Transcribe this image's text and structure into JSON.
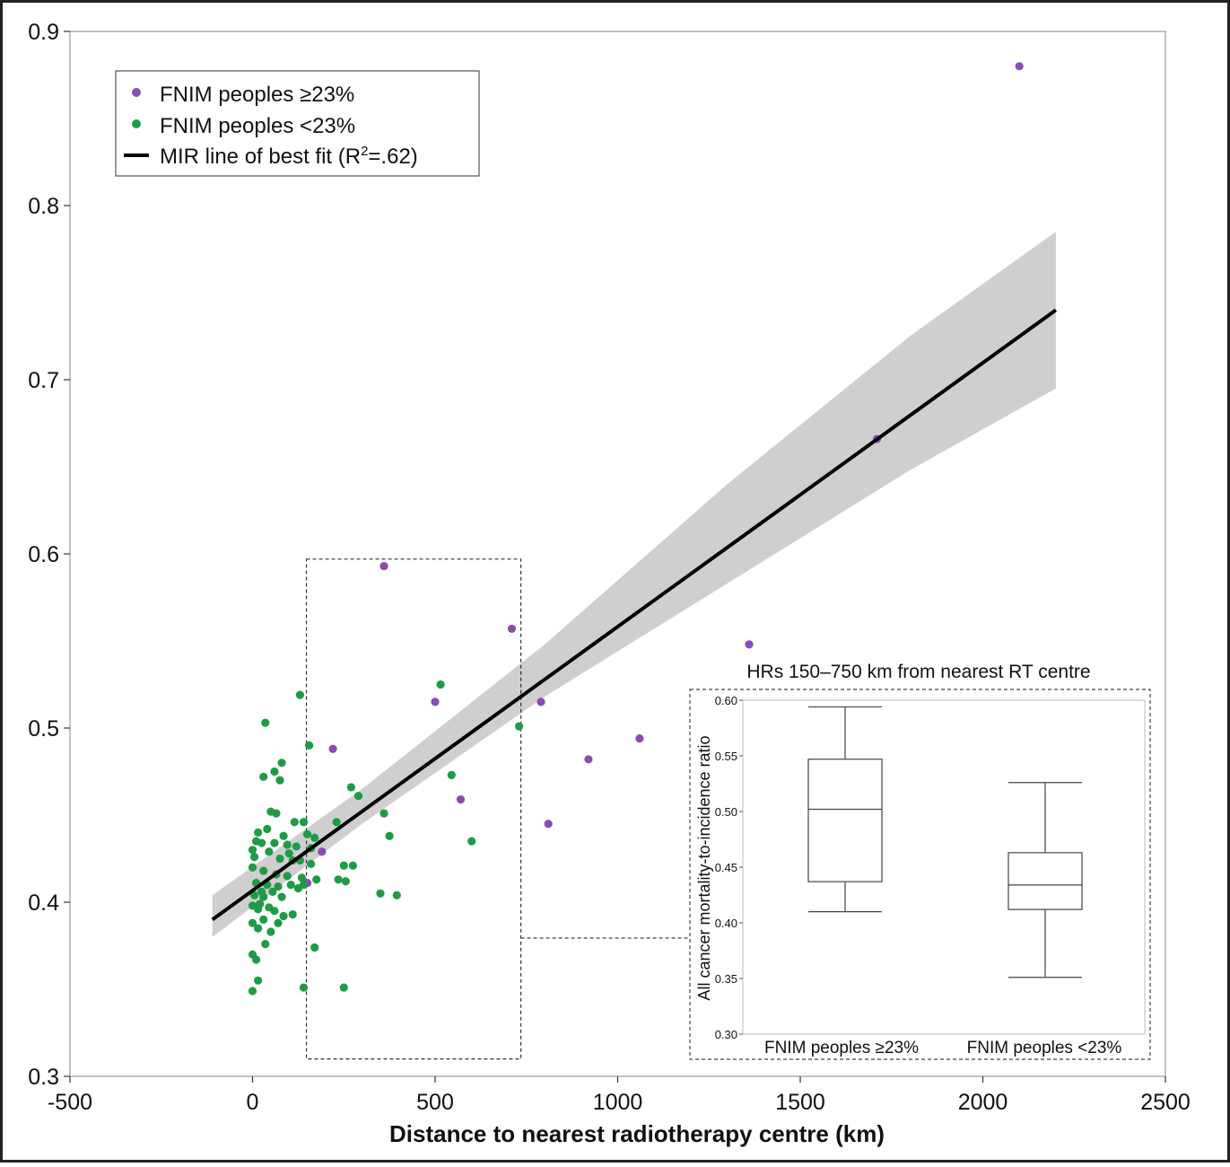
{
  "colors": {
    "purple": "#8a4bb5",
    "green": "#1f9b45",
    "band": "#cfcfcf",
    "line": "#000000",
    "axis": "#333333"
  },
  "chart_data": [
    {
      "type": "scatter",
      "title": "",
      "xlabel": "Distance to nearest radiotherapy centre (km)",
      "ylabel": "",
      "xlim": [
        -500,
        2500
      ],
      "ylim": [
        0.3,
        0.9
      ],
      "xticks": [
        "-500",
        "0",
        "500",
        "1000",
        "1500",
        "2000",
        "2500"
      ],
      "yticks": [
        "0.3",
        "0.4",
        "0.5",
        "0.6",
        "0.7",
        "0.8",
        "0.9"
      ],
      "grid": false,
      "legend_position": "top-left",
      "legend": [
        {
          "label": "FNIM peoples ≥23%",
          "kind": "point",
          "color": "#8a4bb5"
        },
        {
          "label": "FNIM peoples <23%",
          "kind": "point",
          "color": "#1f9b45"
        },
        {
          "label": "MIR line of best fit (R",
          "sup": "2",
          "tail": "=.62)",
          "kind": "line",
          "color": "#000000"
        }
      ],
      "fit_line": {
        "x": [
          -110,
          2200
        ],
        "y": [
          0.39,
          0.74
        ]
      },
      "confidence_band": {
        "x": [
          -110,
          300,
          800,
          1300,
          1800,
          2200
        ],
        "lower": [
          0.38,
          0.445,
          0.518,
          0.583,
          0.648,
          0.695
        ],
        "upper": [
          0.404,
          0.465,
          0.548,
          0.64,
          0.725,
          0.785
        ]
      },
      "highlight_range_km": [
        150,
        730
      ],
      "highlight_y_range": [
        0.31,
        0.597
      ],
      "series": [
        {
          "name": "FNIM peoples ≥23%",
          "color": "#8a4bb5",
          "points": [
            [
              2100,
              0.88
            ],
            [
              1710,
              0.666
            ],
            [
              1360,
              0.548
            ],
            [
              360,
              0.593
            ],
            [
              710,
              0.557
            ],
            [
              790,
              0.515
            ],
            [
              500,
              0.515
            ],
            [
              1060,
              0.494
            ],
            [
              920,
              0.482
            ],
            [
              220,
              0.488
            ],
            [
              570,
              0.459
            ],
            [
              810,
              0.445
            ],
            [
              190,
              0.429
            ],
            [
              150,
              0.411
            ]
          ]
        },
        {
          "name": "FNIM peoples <23%",
          "color": "#1f9b45",
          "points": [
            [
              130,
              0.519
            ],
            [
              515,
              0.525
            ],
            [
              35,
              0.503
            ],
            [
              730,
              0.501
            ],
            [
              155,
              0.49
            ],
            [
              80,
              0.48
            ],
            [
              60,
              0.475
            ],
            [
              30,
              0.472
            ],
            [
              75,
              0.47
            ],
            [
              545,
              0.473
            ],
            [
              270,
              0.466
            ],
            [
              290,
              0.461
            ],
            [
              50,
              0.452
            ],
            [
              65,
              0.451
            ],
            [
              360,
              0.451
            ],
            [
              115,
              0.446
            ],
            [
              140,
              0.446
            ],
            [
              230,
              0.446
            ],
            [
              40,
              0.442
            ],
            [
              15,
              0.44
            ],
            [
              85,
              0.438
            ],
            [
              150,
              0.439
            ],
            [
              170,
              0.437
            ],
            [
              375,
              0.438
            ],
            [
              10,
              0.435
            ],
            [
              25,
              0.434
            ],
            [
              60,
              0.434
            ],
            [
              95,
              0.433
            ],
            [
              120,
              0.432
            ],
            [
              160,
              0.431
            ],
            [
              0,
              0.43
            ],
            [
              45,
              0.429
            ],
            [
              100,
              0.428
            ],
            [
              600,
              0.435
            ],
            [
              5,
              0.426
            ],
            [
              75,
              0.425
            ],
            [
              110,
              0.424
            ],
            [
              130,
              0.424
            ],
            [
              160,
              0.422
            ],
            [
              250,
              0.421
            ],
            [
              275,
              0.421
            ],
            [
              0,
              0.42
            ],
            [
              30,
              0.418
            ],
            [
              65,
              0.416
            ],
            [
              95,
              0.415
            ],
            [
              135,
              0.414
            ],
            [
              175,
              0.413
            ],
            [
              235,
              0.413
            ],
            [
              255,
              0.412
            ],
            [
              10,
              0.411
            ],
            [
              40,
              0.41
            ],
            [
              70,
              0.409
            ],
            [
              105,
              0.41
            ],
            [
              125,
              0.408
            ],
            [
              140,
              0.41
            ],
            [
              25,
              0.406
            ],
            [
              55,
              0.406
            ],
            [
              5,
              0.404
            ],
            [
              30,
              0.403
            ],
            [
              80,
              0.403
            ],
            [
              350,
              0.405
            ],
            [
              395,
              0.404
            ],
            [
              20,
              0.399
            ],
            [
              45,
              0.397
            ],
            [
              0,
              0.398
            ],
            [
              15,
              0.396
            ],
            [
              60,
              0.395
            ],
            [
              85,
              0.392
            ],
            [
              110,
              0.393
            ],
            [
              30,
              0.39
            ],
            [
              70,
              0.388
            ],
            [
              0,
              0.388
            ],
            [
              15,
              0.385
            ],
            [
              50,
              0.383
            ],
            [
              35,
              0.376
            ],
            [
              170,
              0.374
            ],
            [
              0,
              0.37
            ],
            [
              10,
              0.367
            ],
            [
              15,
              0.355
            ],
            [
              140,
              0.351
            ],
            [
              250,
              0.351
            ],
            [
              0,
              0.349
            ]
          ]
        }
      ]
    },
    {
      "type": "box",
      "title": "HRs 150–750 km from nearest RT centre",
      "ylabel": "All cancer mortality-to-incidence ratio",
      "ylim": [
        0.3,
        0.6
      ],
      "yticks": [
        "0.30",
        "0.35",
        "0.40",
        "0.45",
        "0.50",
        "0.55",
        "0.60"
      ],
      "categories": [
        "FNIM peoples ≥23%",
        "FNIM peoples <23%"
      ],
      "boxes": [
        {
          "min": 0.41,
          "q1": 0.437,
          "median": 0.502,
          "q3": 0.547,
          "max": 0.594
        },
        {
          "min": 0.351,
          "q1": 0.412,
          "median": 0.434,
          "q3": 0.463,
          "max": 0.526
        }
      ]
    }
  ]
}
